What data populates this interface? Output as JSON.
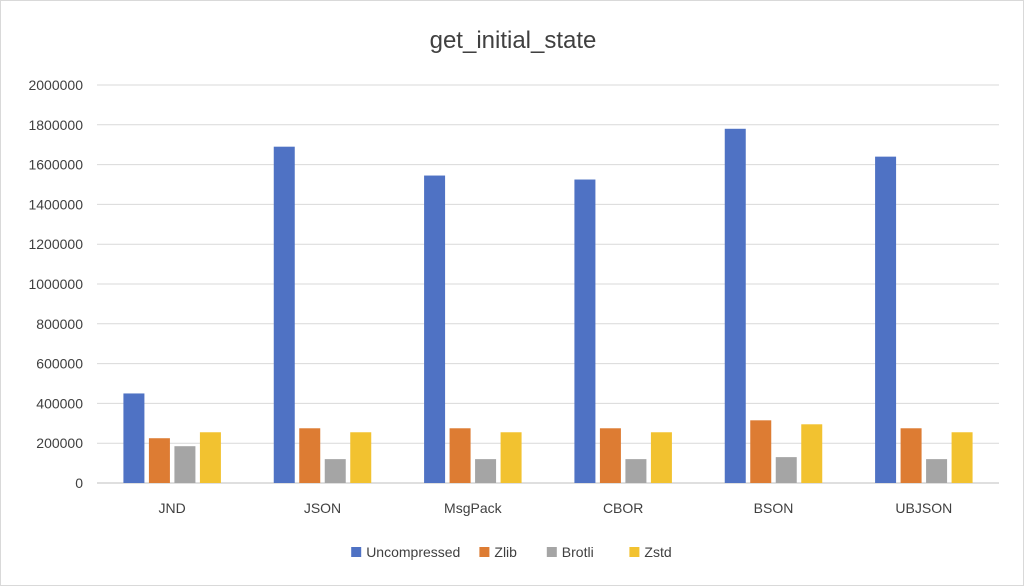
{
  "chart_data": {
    "type": "bar",
    "title": "get_initial_state",
    "xlabel": "",
    "ylabel": "",
    "ylim": [
      0,
      2000000
    ],
    "yticks": [
      0,
      200000,
      400000,
      600000,
      800000,
      1000000,
      1200000,
      1400000,
      1600000,
      1800000,
      2000000
    ],
    "ytick_labels": [
      "0",
      "200000",
      "400000",
      "600000",
      "800000",
      "1000000",
      "1200000",
      "1400000",
      "1600000",
      "1800000",
      "2000000"
    ],
    "grid": true,
    "legend_position": "bottom",
    "categories": [
      "JND",
      "JSON",
      "MsgPack",
      "CBOR",
      "BSON",
      "UBJSON"
    ],
    "series": [
      {
        "name": "Uncompressed",
        "color": "#4f72c4",
        "values": [
          450000,
          1690000,
          1545000,
          1525000,
          1780000,
          1640000
        ]
      },
      {
        "name": "Zlib",
        "color": "#dd7c33",
        "values": [
          225000,
          275000,
          275000,
          275000,
          315000,
          275000
        ]
      },
      {
        "name": "Brotli",
        "color": "#a5a5a5",
        "values": [
          185000,
          120000,
          120000,
          120000,
          130000,
          120000
        ]
      },
      {
        "name": "Zstd",
        "color": "#f2c230",
        "values": [
          255000,
          255000,
          255000,
          255000,
          295000,
          255000
        ]
      }
    ]
  }
}
